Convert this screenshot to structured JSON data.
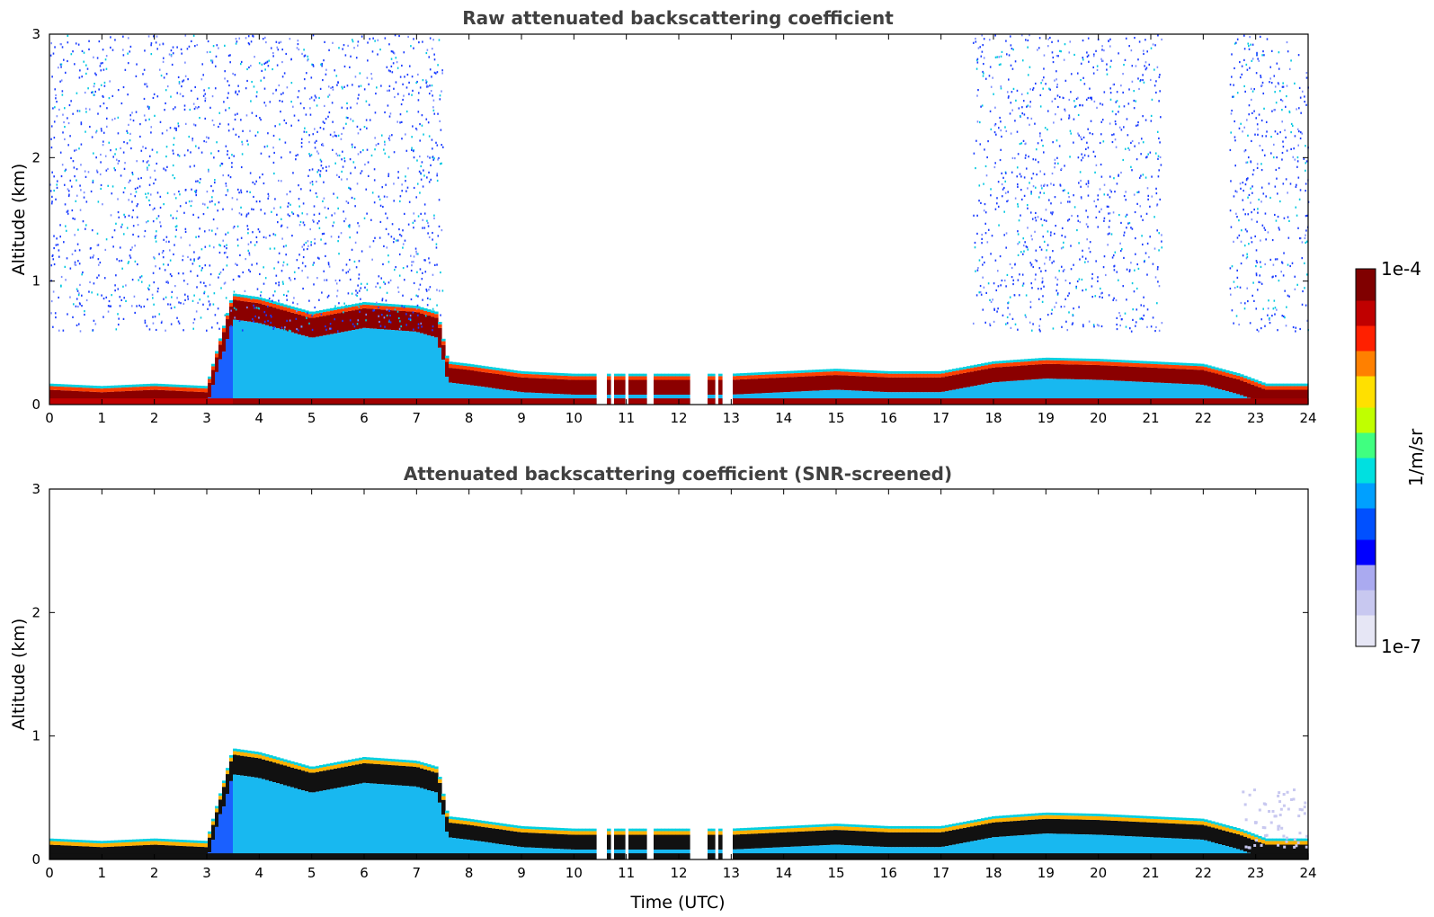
{
  "chart_data": [
    {
      "type": "heatmap",
      "title": "Raw attenuated backscattering coefficient",
      "xlabel": "",
      "ylabel": "Altitude (km)",
      "xlim": [
        0,
        24
      ],
      "ylim": [
        0,
        3
      ],
      "xticks": [
        "0",
        "1",
        "2",
        "3",
        "4",
        "5",
        "6",
        "7",
        "8",
        "9",
        "10",
        "11",
        "12",
        "13",
        "14",
        "15",
        "16",
        "17",
        "18",
        "19",
        "20",
        "21",
        "22",
        "23",
        "24"
      ],
      "yticks": [
        "0",
        "1",
        "2",
        "3"
      ],
      "screened": false,
      "layer_top_km": [
        [
          0,
          0.12
        ],
        [
          1,
          0.1
        ],
        [
          2,
          0.12
        ],
        [
          3,
          0.1
        ],
        [
          3.5,
          0.85
        ],
        [
          4,
          0.82
        ],
        [
          5,
          0.7
        ],
        [
          6,
          0.78
        ],
        [
          7,
          0.75
        ],
        [
          7.4,
          0.7
        ],
        [
          7.6,
          0.3
        ],
        [
          8,
          0.28
        ],
        [
          9,
          0.22
        ],
        [
          10,
          0.2
        ],
        [
          11,
          0.2
        ],
        [
          12,
          0.2
        ],
        [
          13,
          0.2
        ],
        [
          14,
          0.22
        ],
        [
          15,
          0.24
        ],
        [
          16,
          0.22
        ],
        [
          17,
          0.22
        ],
        [
          18,
          0.3
        ],
        [
          19,
          0.33
        ],
        [
          20,
          0.32
        ],
        [
          21,
          0.3
        ],
        [
          22,
          0.28
        ],
        [
          22.7,
          0.2
        ],
        [
          23.2,
          0.12
        ],
        [
          24,
          0.12
        ]
      ],
      "gaps_utc": [
        [
          10.45,
          10.6
        ],
        [
          10.7,
          10.75
        ],
        [
          11.0,
          11.05
        ],
        [
          11.15,
          11.2
        ],
        [
          11.4,
          11.5
        ],
        [
          12.05,
          12.1
        ],
        [
          12.2,
          12.55
        ],
        [
          12.7,
          12.75
        ],
        [
          12.85,
          13.05
        ]
      ],
      "noise_intervals_utc": [
        [
          0,
          7.5
        ],
        [
          17.6,
          21.2
        ],
        [
          22.5,
          24
        ]
      ]
    },
    {
      "type": "heatmap",
      "title": "Attenuated backscattering coefficient (SNR-screened)",
      "xlabel": "Time (UTC)",
      "ylabel": "Altitude (km)",
      "xlim": [
        0,
        24
      ],
      "ylim": [
        0,
        3
      ],
      "xticks": [
        "0",
        "1",
        "2",
        "3",
        "4",
        "5",
        "6",
        "7",
        "8",
        "9",
        "10",
        "11",
        "12",
        "13",
        "14",
        "15",
        "16",
        "17",
        "18",
        "19",
        "20",
        "21",
        "22",
        "23",
        "24"
      ],
      "yticks": [
        "0",
        "1",
        "2",
        "3"
      ],
      "screened": true
    }
  ],
  "colorbar": {
    "max_label": "1e-4",
    "min_label": "1e-7",
    "unit_label": "1/m/sr",
    "colors": [
      "#e6e6f5",
      "#c8c8f0",
      "#aaaaf0",
      "#0000ff",
      "#0050ff",
      "#00a0ff",
      "#00e0e0",
      "#40ff80",
      "#c0ff00",
      "#ffe000",
      "#ff8000",
      "#ff2000",
      "#c00000",
      "#800000"
    ]
  }
}
